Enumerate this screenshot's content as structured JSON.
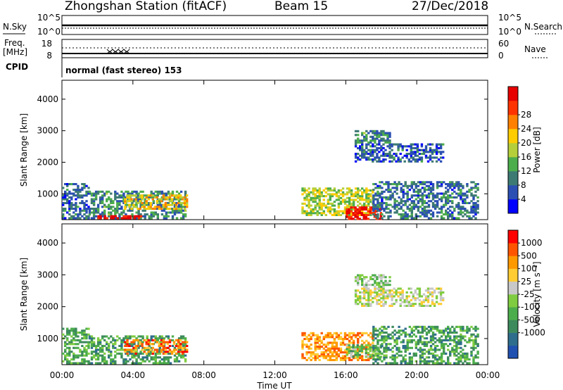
{
  "header": {
    "station_title": "Zhongshan Station (fitACF)",
    "beam": "Beam 15",
    "date": "27/Dec/2018"
  },
  "top_panels": {
    "nsky_label": "N.Sky",
    "nsky_ticks": [
      "10^5",
      "10^0"
    ],
    "nsearch_label": "N.Search",
    "nsearch_ticks": [
      "10^5",
      "10^0"
    ],
    "freq_label_1": "Freq.",
    "freq_label_2": "[MHz]",
    "freq_ticks": [
      "18",
      "8"
    ],
    "nave_label": "Nave",
    "nave_ticks": [
      "60",
      "0"
    ],
    "cpid_label": "CPID",
    "cpid_text": "normal (fast stereo) 153"
  },
  "chart_data": [
    {
      "type": "heatmap",
      "parameter": "power",
      "ylabel": "Slant Range [km]",
      "xlabel": "",
      "y_ticks": [
        1000,
        2000,
        3000,
        4000
      ],
      "ylim": [
        180,
        4600
      ],
      "x_ticks": [
        "00:00",
        "04:00",
        "08:00",
        "12:00",
        "16:00",
        "20:00",
        "00:00"
      ],
      "xlim_hours": [
        0,
        24
      ],
      "colorbar": {
        "label": "Power [dB]",
        "ticks": [
          "4",
          "8",
          "12",
          "16",
          "20",
          "24",
          "28"
        ],
        "colors": [
          "#0000ff",
          "#2b4fb3",
          "#3d7a73",
          "#4cad4c",
          "#b5cf3a",
          "#ffcc00",
          "#ff8000",
          "#ff3300",
          "#e60000"
        ]
      },
      "regions": [
        {
          "t0": 0.0,
          "t1": 1.5,
          "r0": 200,
          "r1": 1300,
          "level": 0.2
        },
        {
          "t0": 1.5,
          "t1": 7.0,
          "r0": 200,
          "r1": 1100,
          "level": 0.3
        },
        {
          "t0": 3.5,
          "t1": 7.0,
          "r0": 500,
          "r1": 950,
          "level": 0.6
        },
        {
          "t0": 2.0,
          "t1": 4.5,
          "r0": 200,
          "r1": 320,
          "level": 0.95
        },
        {
          "t0": 13.5,
          "t1": 17.5,
          "r0": 300,
          "r1": 1150,
          "level": 0.5
        },
        {
          "t0": 16.0,
          "t1": 18.0,
          "r0": 180,
          "r1": 600,
          "level": 0.95
        },
        {
          "t0": 17.5,
          "t1": 23.5,
          "r0": 200,
          "r1": 1400,
          "level": 0.25
        },
        {
          "t0": 16.5,
          "t1": 21.5,
          "r0": 2000,
          "r1": 2600,
          "level": 0.2
        },
        {
          "t0": 16.5,
          "t1": 18.5,
          "r0": 2600,
          "r1": 3000,
          "level": 0.3
        }
      ]
    },
    {
      "type": "heatmap",
      "parameter": "velocity",
      "ylabel": "Slant Range [km]",
      "xlabel": "Time UT",
      "y_ticks": [
        1000,
        2000,
        3000,
        4000
      ],
      "ylim": [
        180,
        4600
      ],
      "x_ticks": [
        "00:00",
        "04:00",
        "08:00",
        "12:00",
        "16:00",
        "20:00",
        "00:00"
      ],
      "xlim_hours": [
        0,
        24
      ],
      "colorbar": {
        "label": "Velocity [m s⁻¹]",
        "ticks": [
          "1000",
          "500",
          "100",
          "25",
          "-25",
          "-100",
          "-500",
          "-1000"
        ],
        "colors": [
          "#2050b0",
          "#2e6e8c",
          "#3d8a5c",
          "#4cad4c",
          "#80cc40",
          "#c8c8c8",
          "#ffcc33",
          "#ff9900",
          "#ff5500",
          "#ff0000"
        ]
      },
      "regions": [
        {
          "t0": 0.0,
          "t1": 1.5,
          "r0": 200,
          "r1": 1300,
          "level": 0.35
        },
        {
          "t0": 1.5,
          "t1": 7.0,
          "r0": 200,
          "r1": 1100,
          "level": 0.3
        },
        {
          "t0": 3.5,
          "t1": 7.0,
          "r0": 500,
          "r1": 950,
          "level": 0.8
        },
        {
          "t0": 13.5,
          "t1": 17.5,
          "r0": 300,
          "r1": 1150,
          "level": 0.75
        },
        {
          "t0": 16.0,
          "t1": 18.0,
          "r0": 400,
          "r1": 800,
          "level": 0.4
        },
        {
          "t0": 17.5,
          "t1": 23.5,
          "r0": 200,
          "r1": 1400,
          "level": 0.3
        },
        {
          "t0": 16.5,
          "t1": 21.5,
          "r0": 2000,
          "r1": 2600,
          "level": 0.55
        },
        {
          "t0": 16.5,
          "t1": 18.5,
          "r0": 2600,
          "r1": 3000,
          "level": 0.45
        }
      ]
    }
  ]
}
